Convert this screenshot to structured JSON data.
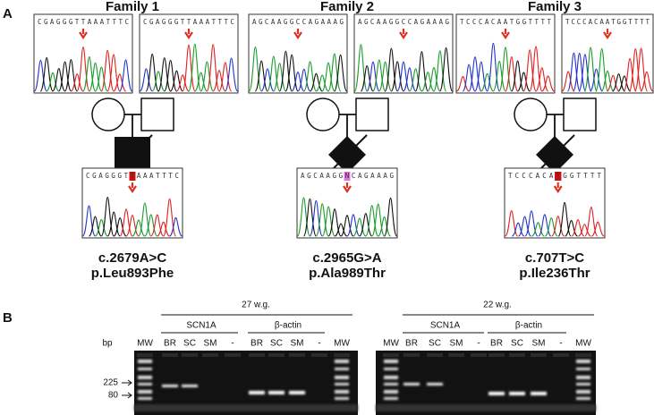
{
  "panel_labels": [
    "A",
    "B"
  ],
  "families": [
    {
      "title": "Family 1",
      "parent_sequences": [
        "CGAGGGTTAAATTTC",
        "CGAGGGTTAAATTTC"
      ],
      "proband_sequence": "CGAGGGTTAAATTTC",
      "mutation": "c.2679A>C",
      "protein": "p.Leu893Phe"
    },
    {
      "title": "Family 2",
      "parent_sequences": [
        "AGCAAGGCCAGAAAG",
        "AGCAAGGCCAGAAAG"
      ],
      "proband_sequence": "AGCAAGGNCAGAAAG",
      "mutation": "c.2965G>A",
      "protein": "p.Ala989Thr"
    },
    {
      "title": "Family 3",
      "parent_sequences": [
        "TCCCACAATGGTTTT",
        "TCCCACAATGGTTTT"
      ],
      "proband_sequence": "TCCCACATGGTTTT",
      "mutation": "c.707T>C",
      "protein": "p.Ile236Thr"
    }
  ],
  "gels": [
    {
      "age": "27 w.g.",
      "gene_label": "SCN1A",
      "control_label": "β-actin",
      "lanes": [
        "MW",
        "BR",
        "SC",
        "SM",
        "-",
        "BR",
        "SC",
        "SM",
        "-",
        "MW"
      ]
    },
    {
      "age": "22 w.g.",
      "gene_label": "SCN1A",
      "control_label": "β-actin",
      "lanes": [
        "MW",
        "BR",
        "SC",
        "SM",
        "-",
        "BR",
        "SC",
        "SM",
        "-",
        "MW"
      ]
    }
  ],
  "size_axis": {
    "unit": "bp",
    "markers": [
      "225",
      "80"
    ]
  }
}
